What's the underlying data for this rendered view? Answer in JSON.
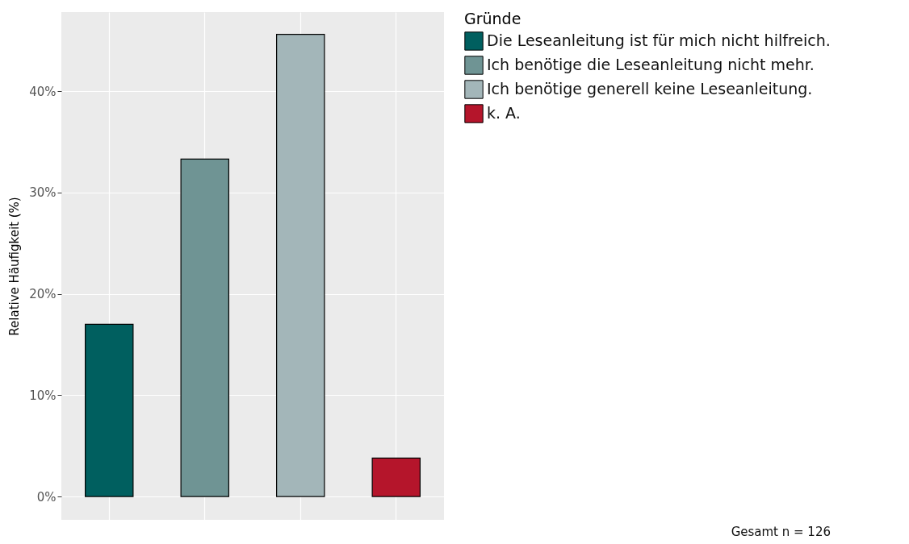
{
  "chart_data": {
    "type": "bar",
    "ylabel": "Relative Häufigkeit (%)",
    "legend_title": "Gründe",
    "categories": [
      null,
      null,
      null,
      null
    ],
    "series": [
      {
        "name": "Die Leseanleitung ist für mich nicht hilfreich.",
        "color": "#005f5f",
        "values": [
          17.0,
          null,
          null,
          null
        ]
      },
      {
        "name": "Ich benötige die Leseanleitung nicht mehr.",
        "color": "#6f9494",
        "values": [
          null,
          33.3,
          null,
          null
        ]
      },
      {
        "name": "Ich benötige generell keine Leseanleitung.",
        "color": "#a3b6b9",
        "values": [
          null,
          null,
          45.6,
          null
        ]
      },
      {
        "name": "k. A.",
        "color": "#b5152b",
        "values": [
          null,
          null,
          null,
          3.8
        ]
      }
    ],
    "ylim": [
      -2.3,
      47.8
    ],
    "yticks": [
      {
        "value": 0,
        "label": "0%"
      },
      {
        "value": 10,
        "label": "10%"
      },
      {
        "value": 20,
        "label": "20%"
      },
      {
        "value": 30,
        "label": "30%"
      },
      {
        "value": 40,
        "label": "40%"
      }
    ],
    "grid": true,
    "legend": "right",
    "annotations": [
      "Gesamt n = 126"
    ]
  }
}
